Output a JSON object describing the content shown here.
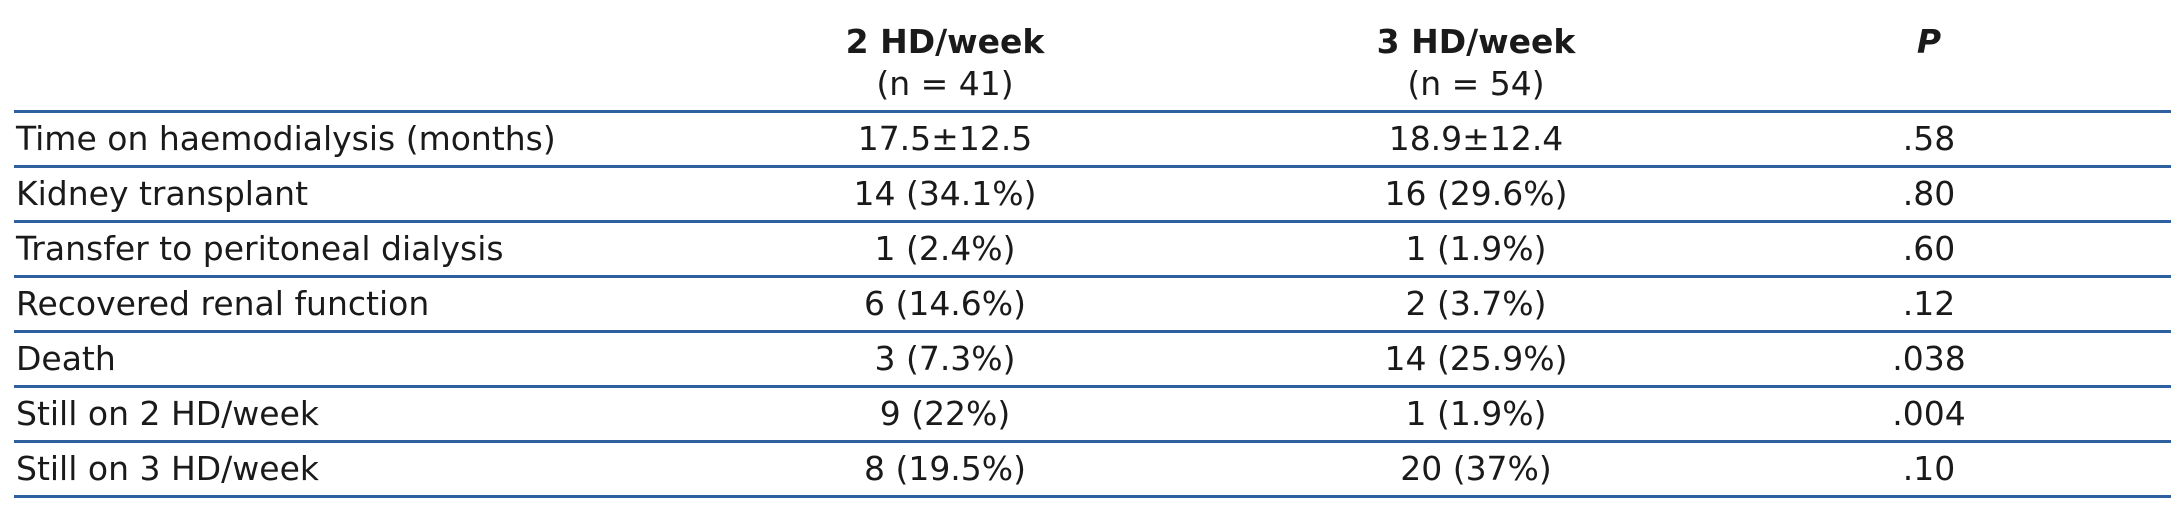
{
  "table": {
    "columns": [
      {
        "title": "2 HD/week",
        "subtitle": "(n = 41)"
      },
      {
        "title": "3 HD/week",
        "subtitle": "(n = 54)"
      },
      {
        "title": "P"
      }
    ],
    "rows": [
      [
        "Time on haemodialysis (months)",
        "17.5±12.5",
        "18.9±12.4",
        ".58"
      ],
      [
        "Kidney transplant",
        "14 (34.1%)",
        "16 (29.6%)",
        ".80"
      ],
      [
        "Transfer to peritoneal dialysis",
        "1 (2.4%)",
        "1 (1.9%)",
        ".60"
      ],
      [
        "Recovered renal function",
        "6 (14.6%)",
        "2 (3.7%)",
        ".12"
      ],
      [
        "Death",
        "3 (7.3%)",
        "14 (25.9%)",
        ".038"
      ],
      [
        "Still on 2 HD/week",
        "9 (22%)",
        "1 (1.9%)",
        ".004"
      ],
      [
        "Still on 3 HD/week",
        "8 (19.5%)",
        "20 (37%)",
        ".10"
      ]
    ]
  }
}
